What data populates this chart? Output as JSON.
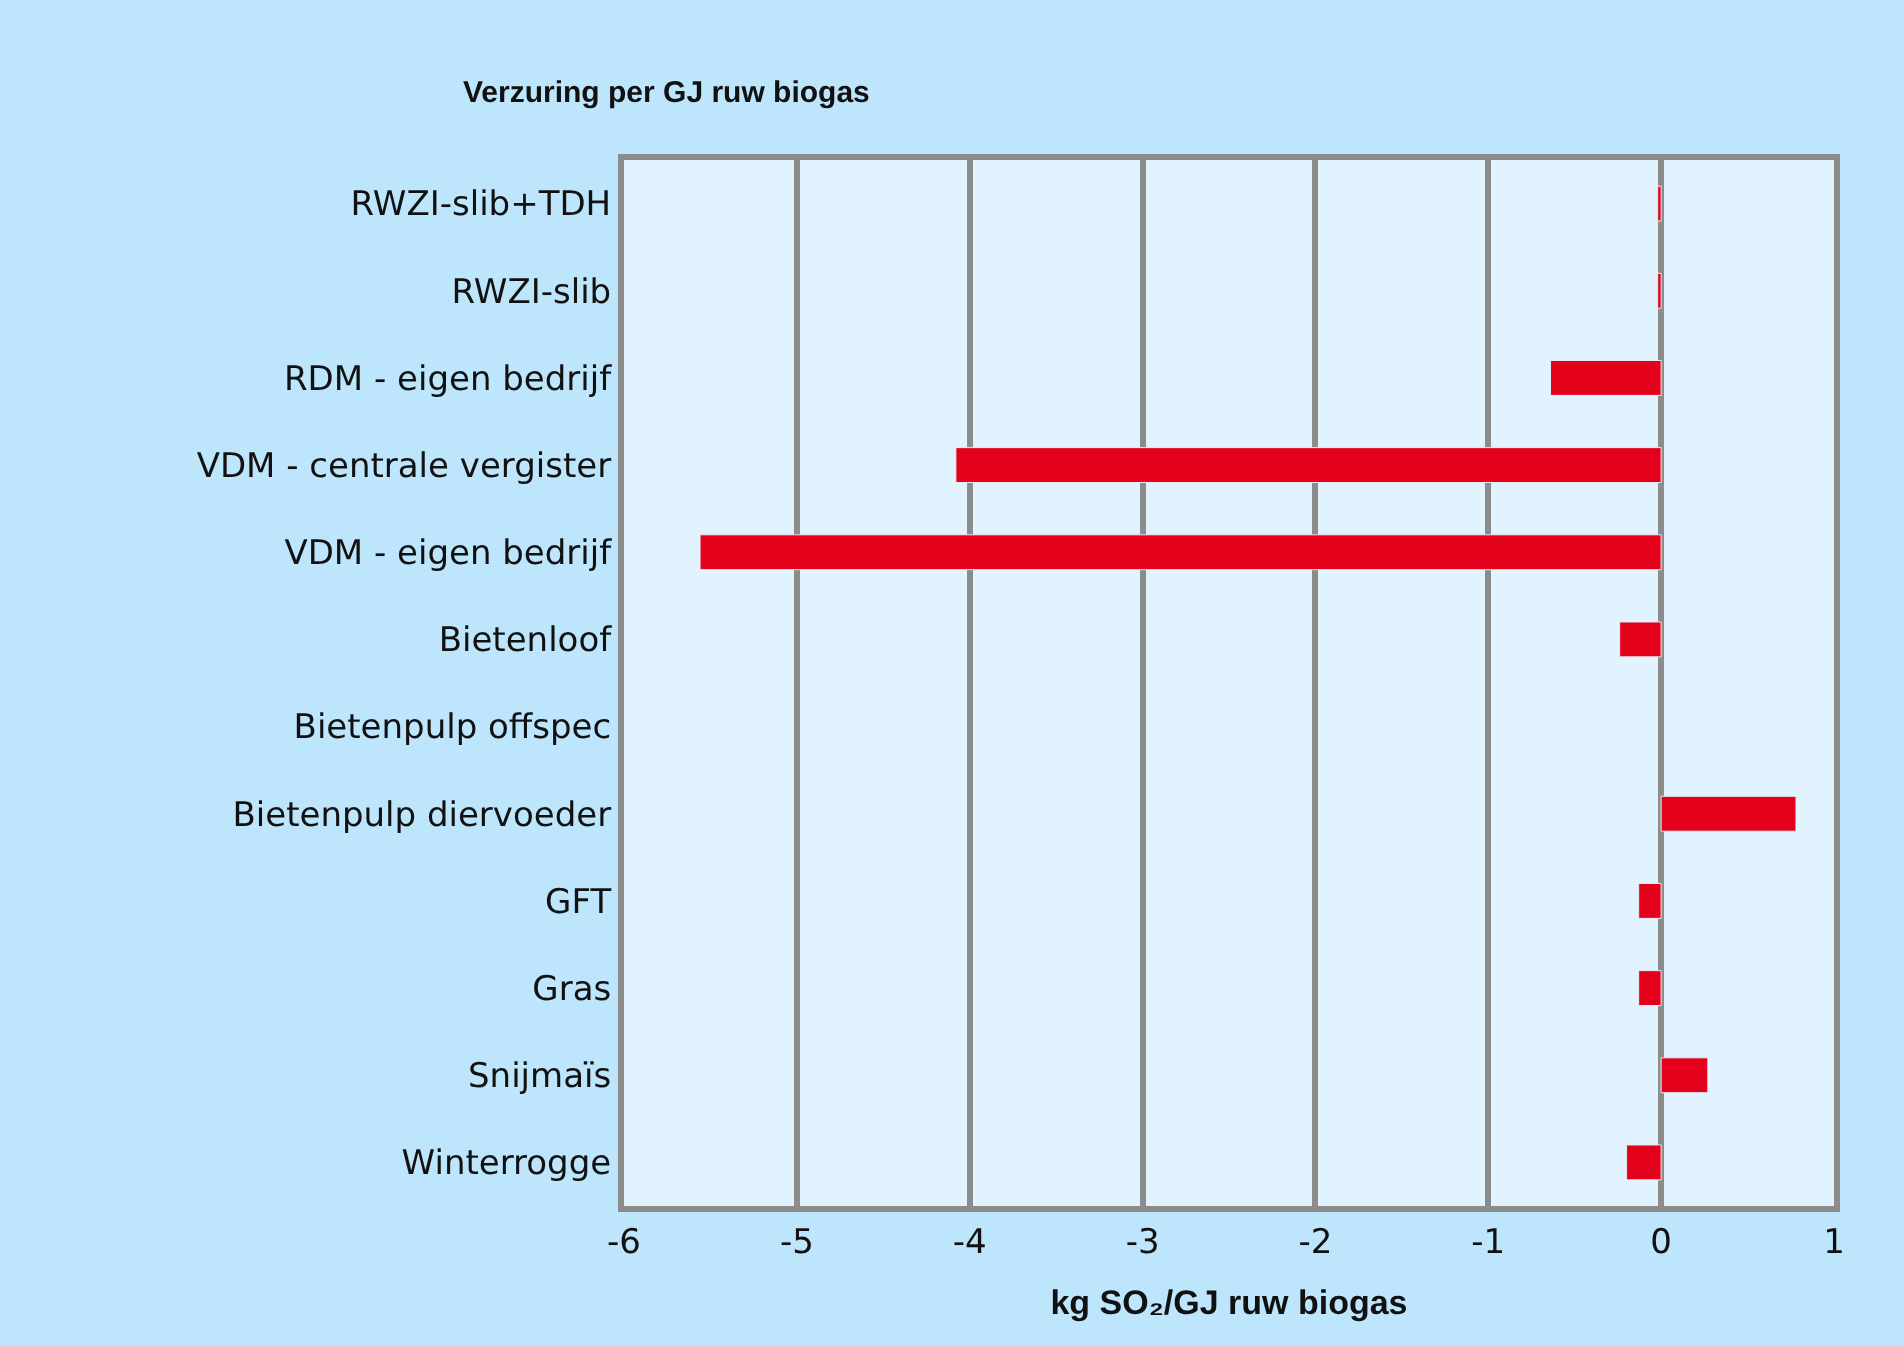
{
  "chart_data": {
    "type": "bar",
    "orientation": "horizontal",
    "title": "Verzuring per GJ ruw biogas",
    "xlabel": "kg SO₂/GJ ruw biogas",
    "categories": [
      "RWZI-slib+TDH",
      "RWZI-slib",
      "RDM - eigen bedrijf",
      "VDM - centrale vergister",
      "VDM - eigen bedrijf",
      "Bietenloof",
      "Bietenpulp offspec",
      "Bietenpulp diervoeder",
      "GFT",
      "Gras",
      "Snijmaïs",
      "Winterrogge"
    ],
    "values": [
      -0.02,
      -0.02,
      -0.64,
      -4.08,
      -5.56,
      -0.24,
      null,
      0.78,
      -0.13,
      -0.13,
      0.27,
      -0.2
    ],
    "color": "#e2001a",
    "xlim": [
      -6,
      1
    ],
    "xticks": [
      -6,
      -5,
      -4,
      -3,
      -2,
      -1,
      0,
      1
    ],
    "grid": "x"
  }
}
